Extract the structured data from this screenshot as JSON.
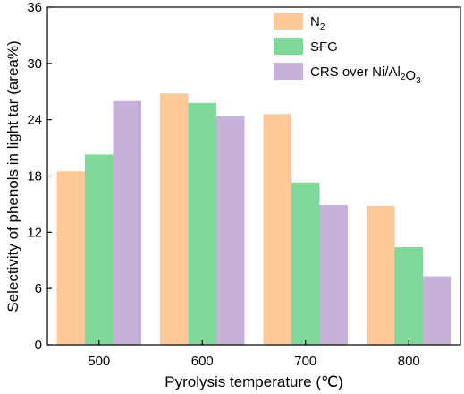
{
  "chart_data": {
    "type": "bar",
    "categories": [
      "500",
      "600",
      "700",
      "800"
    ],
    "series": [
      {
        "name": "N2",
        "name_main": "N",
        "name_sub": "2",
        "color": "#FFC898",
        "values": [
          18.5,
          26.8,
          24.6,
          14.8
        ]
      },
      {
        "name": "SFG",
        "color": "#7DD89A",
        "values": [
          20.3,
          25.8,
          17.3,
          10.4
        ]
      },
      {
        "name": "CRS over Ni/Al2O3",
        "color": "#C7B0DA",
        "values": [
          26.0,
          24.4,
          14.9,
          7.3
        ]
      }
    ],
    "xlabel": "Pyrolysis temperature (℃)",
    "ylabel": "Selectivity of phenols in light tar (area%)",
    "ylim": [
      0,
      36
    ],
    "yticks": [
      "0",
      "6",
      "12",
      "18",
      "24",
      "30",
      "36"
    ],
    "legend_position": "top-right",
    "grid": false
  }
}
